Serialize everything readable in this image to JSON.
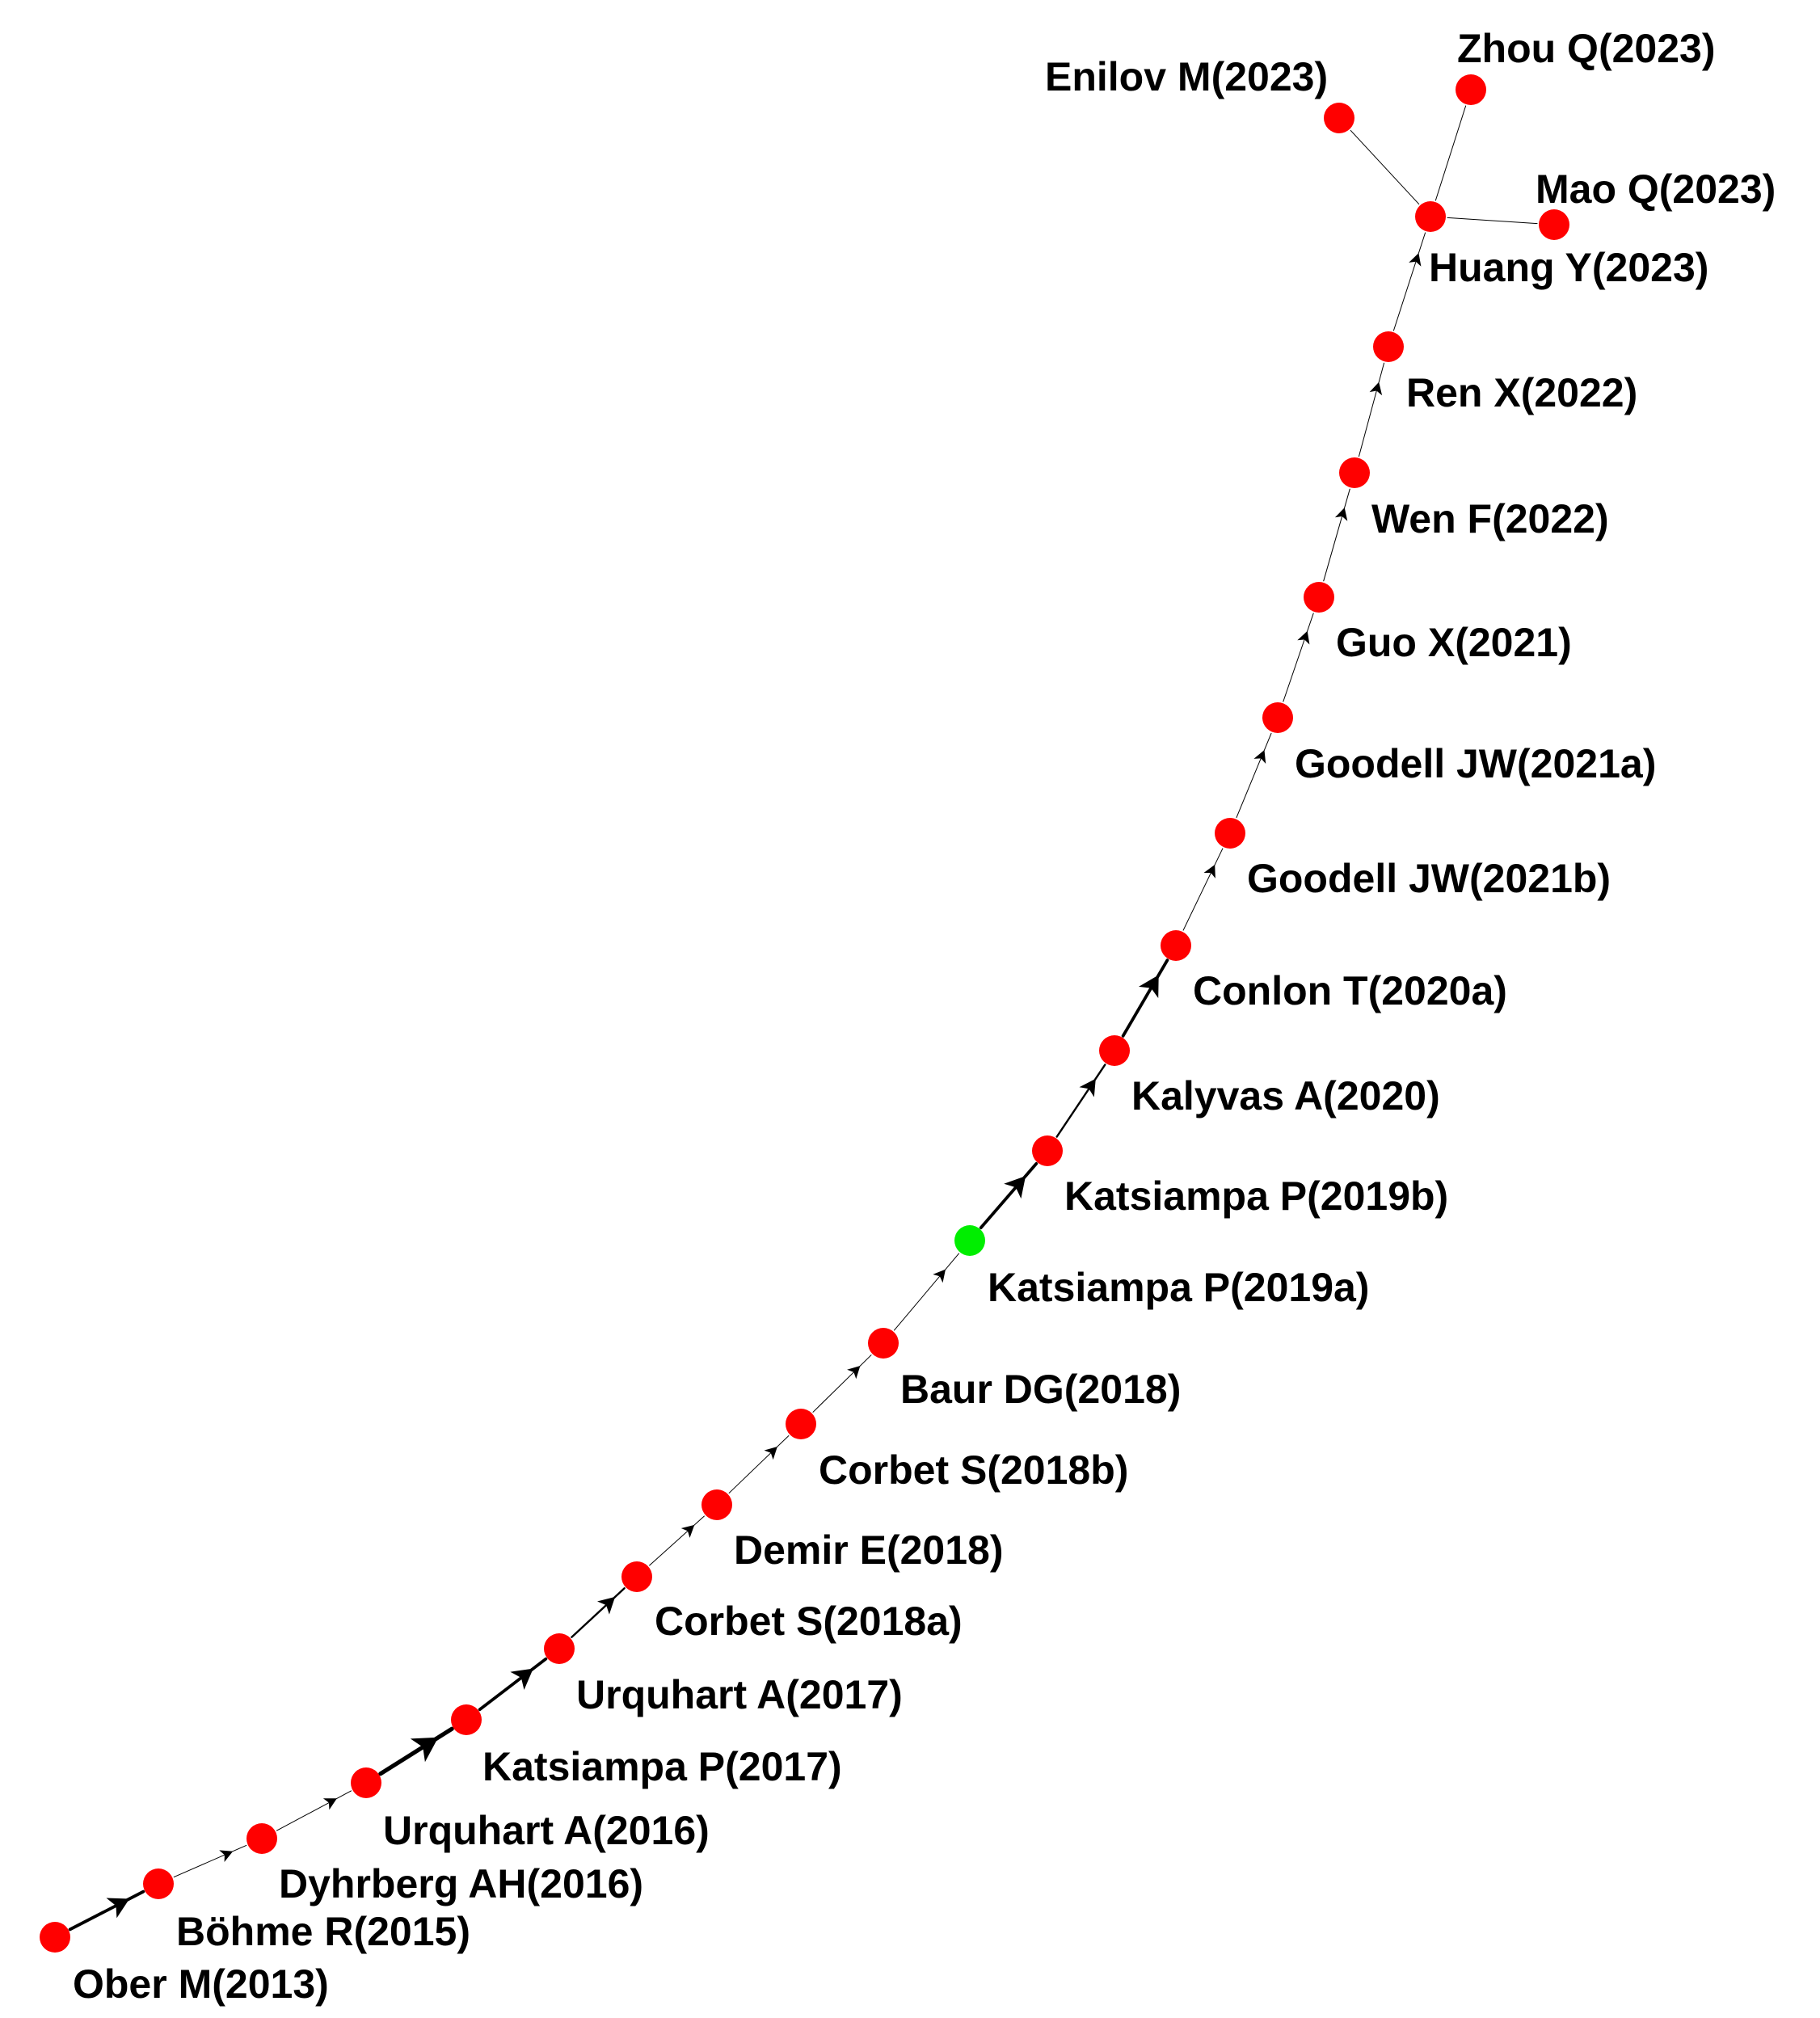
{
  "colors": {
    "node_default": "#ff0000",
    "node_highlight": "#00ee00",
    "edge": "#000000",
    "background": "#ffffff"
  },
  "nodes": [
    {
      "id": "ober2013",
      "label": "Ober M(2013)",
      "color": "node_default"
    },
    {
      "id": "bohme2015",
      "label": "Böhme R(2015)",
      "color": "node_default"
    },
    {
      "id": "dyhrberg2016",
      "label": "Dyhrberg AH(2016)",
      "color": "node_default"
    },
    {
      "id": "urquhart2016",
      "label": "Urquhart A(2016)",
      "color": "node_default"
    },
    {
      "id": "katsiampa2017",
      "label": "Katsiampa P(2017)",
      "color": "node_default"
    },
    {
      "id": "urquhart2017",
      "label": "Urquhart A(2017)",
      "color": "node_default"
    },
    {
      "id": "corbet2018a",
      "label": "Corbet S(2018a)",
      "color": "node_default"
    },
    {
      "id": "demir2018",
      "label": "Demir E(2018)",
      "color": "node_default"
    },
    {
      "id": "corbet2018b",
      "label": "Corbet S(2018b)",
      "color": "node_default"
    },
    {
      "id": "baur2018",
      "label": "Baur DG(2018)",
      "color": "node_default"
    },
    {
      "id": "katsiampa2019a",
      "label": "Katsiampa P(2019a)",
      "color": "node_highlight"
    },
    {
      "id": "katsiampa2019b",
      "label": "Katsiampa P(2019b)",
      "color": "node_default"
    },
    {
      "id": "kalyvas2020",
      "label": "Kalyvas A(2020)",
      "color": "node_default"
    },
    {
      "id": "conlon2020a",
      "label": "Conlon T(2020a)",
      "color": "node_default"
    },
    {
      "id": "goodell2021b",
      "label": "Goodell JW(2021b)",
      "color": "node_default"
    },
    {
      "id": "goodell2021a",
      "label": "Goodell JW(2021a)",
      "color": "node_default"
    },
    {
      "id": "guo2021",
      "label": "Guo X(2021)",
      "color": "node_default"
    },
    {
      "id": "wen2022",
      "label": "Wen F(2022)",
      "color": "node_default"
    },
    {
      "id": "ren2022",
      "label": "Ren X(2022)",
      "color": "node_default"
    },
    {
      "id": "huang2023",
      "label": "Huang Y(2023)",
      "color": "node_default"
    },
    {
      "id": "enilov2023",
      "label": "Enilov M(2023)",
      "color": "node_default"
    },
    {
      "id": "zhou2023",
      "label": "Zhou Q(2023)",
      "color": "node_default"
    },
    {
      "id": "mao2023",
      "label": "Mao Q(2023)",
      "color": "node_default"
    }
  ],
  "edges": [
    {
      "from": "ober2013",
      "to": "bohme2015",
      "weight": 3
    },
    {
      "from": "bohme2015",
      "to": "dyhrberg2016",
      "weight": 1
    },
    {
      "from": "dyhrberg2016",
      "to": "urquhart2016",
      "weight": 1
    },
    {
      "from": "urquhart2016",
      "to": "katsiampa2017",
      "weight": 4
    },
    {
      "from": "katsiampa2017",
      "to": "urquhart2017",
      "weight": 3
    },
    {
      "from": "urquhart2017",
      "to": "corbet2018a",
      "weight": 2
    },
    {
      "from": "corbet2018a",
      "to": "demir2018",
      "weight": 1
    },
    {
      "from": "demir2018",
      "to": "corbet2018b",
      "weight": 1
    },
    {
      "from": "corbet2018b",
      "to": "baur2018",
      "weight": 1
    },
    {
      "from": "baur2018",
      "to": "katsiampa2019a",
      "weight": 1
    },
    {
      "from": "katsiampa2019a",
      "to": "katsiampa2019b",
      "weight": 3
    },
    {
      "from": "katsiampa2019b",
      "to": "kalyvas2020",
      "weight": 2
    },
    {
      "from": "kalyvas2020",
      "to": "conlon2020a",
      "weight": 3
    },
    {
      "from": "conlon2020a",
      "to": "goodell2021b",
      "weight": 1
    },
    {
      "from": "goodell2021b",
      "to": "goodell2021a",
      "weight": 1
    },
    {
      "from": "goodell2021a",
      "to": "guo2021",
      "weight": 1
    },
    {
      "from": "guo2021",
      "to": "wen2022",
      "weight": 1
    },
    {
      "from": "wen2022",
      "to": "ren2022",
      "weight": 1
    },
    {
      "from": "ren2022",
      "to": "huang2023",
      "weight": 1
    },
    {
      "from": "huang2023",
      "to": "enilov2023",
      "weight": 1,
      "arrow": false
    },
    {
      "from": "huang2023",
      "to": "zhou2023",
      "weight": 1,
      "arrow": false
    },
    {
      "from": "huang2023",
      "to": "mao2023",
      "weight": 1,
      "arrow": false
    }
  ]
}
